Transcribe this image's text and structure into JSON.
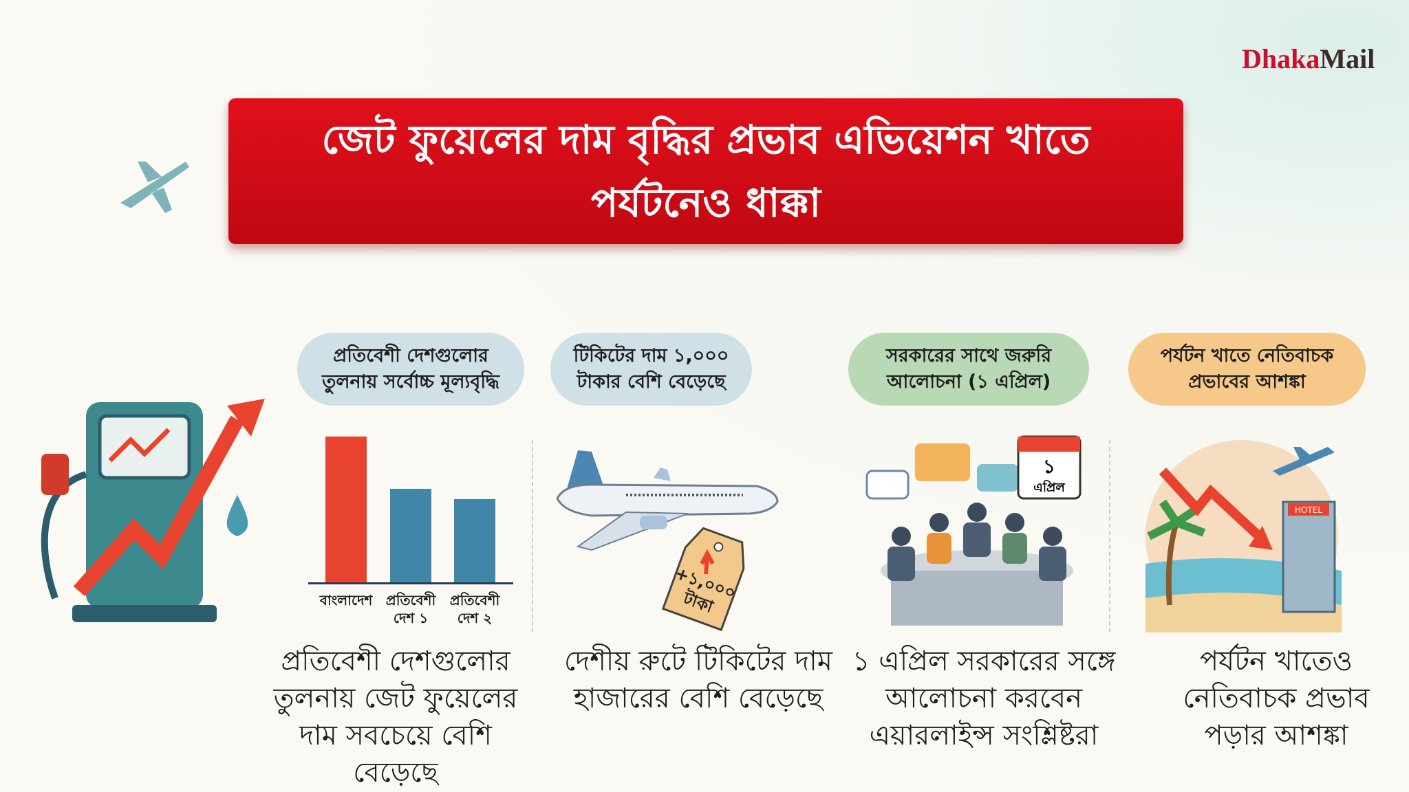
{
  "logo": {
    "part1": "Dhaka",
    "part2": "Mail"
  },
  "title": {
    "line1": "জেট ফুয়েলের দাম বৃদ্ধির প্রভাব এভিয়েশন খাতে",
    "line2": "পর্যটনেও ধাক্কা"
  },
  "pills": [
    {
      "text": "প্রতিবেশী দেশগুলোর তুলনায় সর্বোচ্চ মূল্যবৃদ্ধি",
      "color": "#cfe0e6"
    },
    {
      "text": "টিকিটের দাম ১,০০০ টাকার বেশি বেড়েছে",
      "color": "#cfe0e6"
    },
    {
      "text": "সরকারের সাথে জরুরি আলোচনা (১ এপ্রিল)",
      "color": "#b9d8b5"
    },
    {
      "text": "পর্যটন খাতে নেতিবাচক প্রভাবের আশঙ্কা",
      "color": "#f6c98b"
    }
  ],
  "chart_data": {
    "type": "bar",
    "categories": [
      "বাংলাদেশ",
      "প্রতিবেশী দেশ ১",
      "প্রতিবেশী দেশ ২"
    ],
    "values": [
      100,
      64,
      57
    ],
    "colors": [
      "#e8432e",
      "#3f86a8",
      "#3f86a8"
    ],
    "ylim": [
      0,
      100
    ],
    "grid": false
  },
  "price_tag": {
    "amount": "+১,০০০",
    "unit": "টাকা"
  },
  "calendar": {
    "day": "১",
    "month": "এপ্রিল"
  },
  "hotel_sign": "HOTEL",
  "captions": [
    "প্রতিবেশী দেশগুলোর তুলনায় জেট ফুয়েলের দাম সবচেয়ে বেশি বেড়েছে",
    "দেশীয় রুটে টিকিটের দাম হাজারের বেশি বেড়েছে",
    "১ এপ্রিল সরকারের সঙ্গে আলোচনা করবেন এয়ারলাইন্স সংশ্লিষ্টরা",
    "পর্যটন খাতেও নেতিবাচক প্রভাব পড়ার আশঙ্কা"
  ]
}
